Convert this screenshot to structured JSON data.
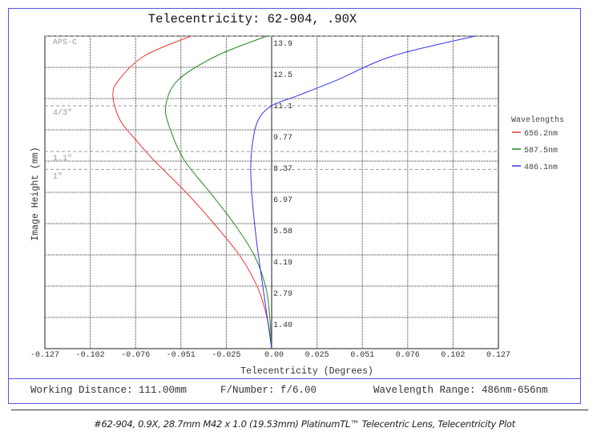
{
  "chart_data": {
    "type": "line",
    "title": "Telecentricity: 62-904, .90X",
    "xlabel": "Telecentricity (Degrees)",
    "ylabel": "Image Height (mm)",
    "xlim": [
      -0.127,
      0.127
    ],
    "ylim": [
      0,
      13.95
    ],
    "grid": true,
    "x_ticks": [
      "-0.127",
      "-0.102",
      "-0.076",
      "-0.051",
      "-0.025",
      "0.00",
      "0.025",
      "0.051",
      "0.076",
      "0.102",
      "0.127"
    ],
    "y_ticks": [
      "1.40",
      "2.79",
      "4.19",
      "5.58",
      "6.97",
      "8.37",
      "9.77",
      "11.1",
      "12.5",
      "13.9"
    ],
    "legend": {
      "title": "Wavelengths",
      "placement": "right"
    },
    "sensor_markers": [
      {
        "label": "APS-C",
        "y": 13.95
      },
      {
        "label": "4/3\"",
        "y": 10.84
      },
      {
        "label": "1.1\"",
        "y": 8.8
      },
      {
        "label": "1\"",
        "y": 8.0
      }
    ],
    "series": [
      {
        "name": "656.2nm",
        "color": "#ee3333",
        "x": [
          0,
          -0.0022,
          -0.0076,
          -0.0175,
          -0.0319,
          -0.048,
          -0.066,
          -0.0759,
          -0.0848,
          -0.0889,
          -0.0857,
          -0.0714,
          -0.0453
        ],
        "y": [
          0,
          1.25,
          2.68,
          4.11,
          5.54,
          6.98,
          8.41,
          9.3,
          10.19,
          11.27,
          11.98,
          13.06,
          13.95
        ]
      },
      {
        "name": "587.5nm",
        "color": "#228822",
        "x": [
          0,
          -0.0009,
          -0.0031,
          -0.0094,
          -0.0207,
          -0.0346,
          -0.0489,
          -0.057,
          -0.0593,
          -0.0525,
          -0.031,
          -0.0027
        ],
        "y": [
          0,
          1.25,
          2.68,
          4.11,
          5.54,
          6.98,
          8.41,
          9.84,
          10.84,
          11.98,
          13.06,
          13.95
        ]
      },
      {
        "name": "486.1nm",
        "color": "#3333ee",
        "x": [
          0,
          -0.0022,
          -0.0054,
          -0.0085,
          -0.0108,
          -0.0117,
          -0.0108,
          -0.0076,
          0,
          0.0139,
          0.0364,
          0.0678,
          0.114
        ],
        "y": [
          0,
          1.25,
          3.04,
          4.83,
          6.62,
          8.01,
          9.12,
          10.19,
          10.84,
          11.27,
          11.98,
          13.06,
          13.95
        ]
      }
    ]
  },
  "info": {
    "working_distance": "Working Distance: 111.00mm",
    "f_number": "F/Number: f/6.00",
    "wavelength_range": "Wavelength Range: 486nm-656nm"
  },
  "caption": "#62-904, 0.9X, 28.7mm M42 x 1.0 (19.53mm) PlatinumTL™ Telecentric Lens, Telecentricity Plot"
}
